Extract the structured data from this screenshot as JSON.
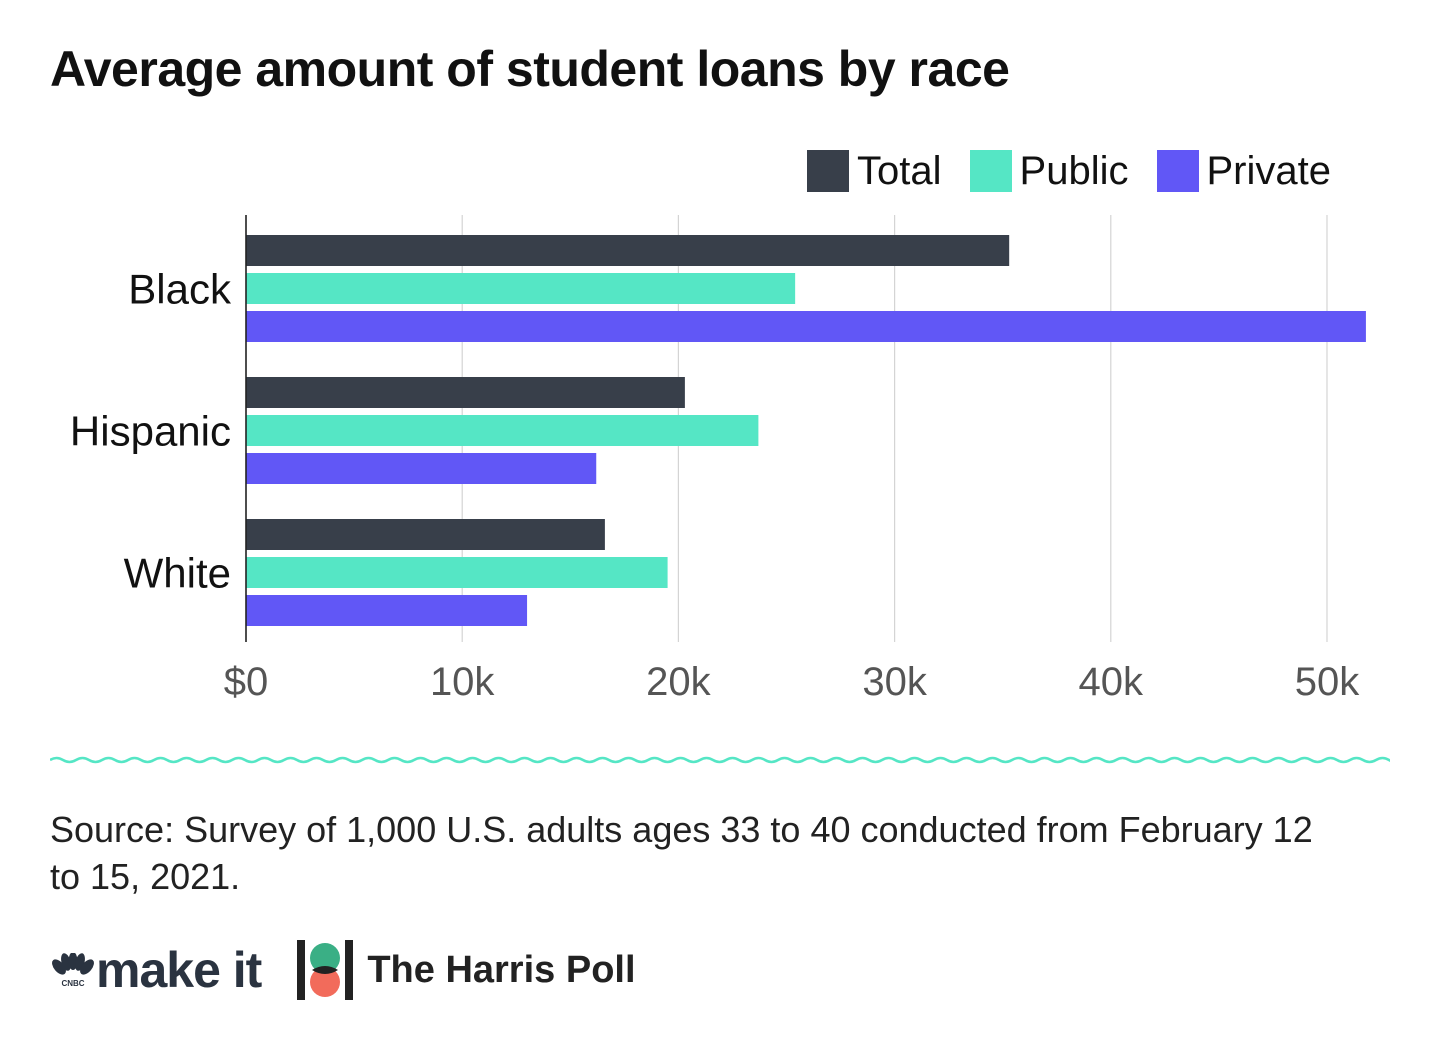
{
  "title": "Average amount of student loans by race",
  "legend": [
    {
      "label": "Total",
      "color": "#383f4a"
    },
    {
      "label": "Public",
      "color": "#55e6c5"
    },
    {
      "label": "Private",
      "color": "#6157f6"
    }
  ],
  "chart_data": {
    "type": "bar",
    "orientation": "horizontal",
    "categories": [
      "Black",
      "Hispanic",
      "White"
    ],
    "series": [
      {
        "name": "Total",
        "color": "#383f4a",
        "values": [
          35300,
          20300,
          16600
        ]
      },
      {
        "name": "Public",
        "color": "#55e6c5",
        "values": [
          25400,
          23700,
          19500
        ]
      },
      {
        "name": "Private",
        "color": "#6157f6",
        "values": [
          51800,
          16200,
          13000
        ]
      }
    ],
    "x_ticks": [
      0,
      10000,
      20000,
      30000,
      40000,
      50000
    ],
    "x_tick_labels": [
      "$0",
      "10k",
      "20k",
      "30k",
      "40k",
      "50k"
    ],
    "xlim": [
      0,
      52000
    ],
    "grid": "vertical",
    "legend_position": "top-right"
  },
  "source": "Source: Survey of 1,000 U.S. adults ages 33 to 40 conducted from February 12 to 15, 2021.",
  "footer": {
    "makeit_logo_text": "make it",
    "nbc_logo_text": "CNBC",
    "harris_logo_text": "The Harris Poll"
  }
}
